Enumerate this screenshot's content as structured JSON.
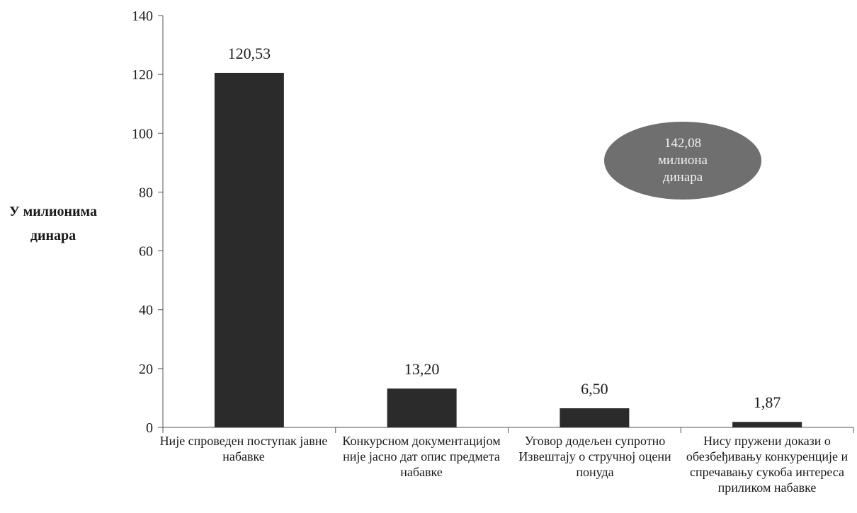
{
  "chart_data": {
    "type": "bar",
    "categories": [
      "Није спроведен поступак јавне набавке",
      "Конкурсном документацијом није јасно дат опис предмета набавке",
      "Уговор додељен супротно Извештају о стручној оцени понуда",
      "Нису пружени докази о обезбеђивању конкуренције и спречавању сукоба интереса приликом набавке"
    ],
    "values": [
      120.53,
      13.2,
      6.5,
      1.87
    ],
    "value_labels": [
      "120,53",
      "13,20",
      "6,50",
      "1,87"
    ],
    "ylabel_lines": [
      "У милионима",
      "динара"
    ],
    "ylim": [
      0,
      140
    ],
    "yticks": [
      0,
      20,
      40,
      60,
      80,
      100,
      120,
      140
    ],
    "grid": false,
    "bar_color": "#2b2b2b",
    "annotation": {
      "lines": [
        "142,08",
        "милиона",
        "динара"
      ],
      "color": "#6f6f6f"
    }
  }
}
